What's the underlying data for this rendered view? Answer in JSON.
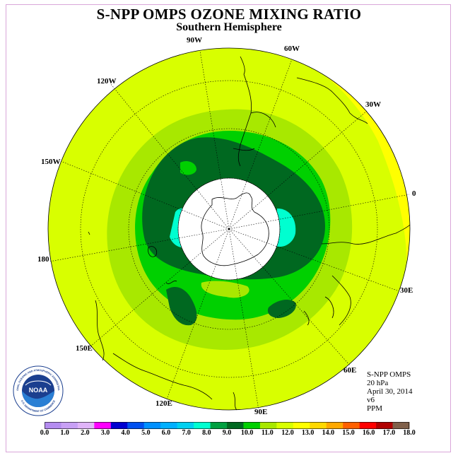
{
  "title": "S-NPP OMPS OZONE MIXING RATIO",
  "subtitle": "Southern Hemisphere",
  "longitude_labels": [
    "90W",
    "60W",
    "30W",
    "0",
    "30E",
    "60E",
    "90E",
    "120E",
    "150E",
    "180",
    "150W",
    "120W"
  ],
  "info": {
    "instrument": "S-NPP OMPS",
    "level": "20 hPa",
    "date": "April 30, 2014",
    "version": "v6",
    "units": "PPM"
  },
  "logo": {
    "text": "NOAA",
    "ring_text": "NATIONAL OCEANIC AND ATMOSPHERIC ADMINISTRATION",
    "ring_text_bottom": "U.S. DEPARTMENT OF COMMERCE"
  },
  "colorbar": {
    "ticks": [
      "0.0",
      "1.0",
      "2.0",
      "3.0",
      "4.0",
      "5.0",
      "6.0",
      "7.0",
      "8.0",
      "9.0",
      "10.0",
      "11.0",
      "12.0",
      "13.0",
      "14.0",
      "15.0",
      "16.0",
      "17.0",
      "18.0"
    ],
    "colors": [
      "#b48cf0",
      "#c8a0f5",
      "#e0b4f8",
      "#ff00ff",
      "#0000d0",
      "#0050f0",
      "#0090ff",
      "#00b0ff",
      "#00d0f0",
      "#00ffd0",
      "#00a040",
      "#006820",
      "#00d000",
      "#a8e800",
      "#d8ff00",
      "#ffff00",
      "#ffd800",
      "#ffa800",
      "#ff6000",
      "#ff0000",
      "#b00000",
      "#80604a"
    ]
  },
  "map_legend_colors": {
    "bg": "#d8ff00",
    "mid_green": "#a8e800",
    "green": "#00d000",
    "dark_green": "#006820",
    "cyan": "#00ffd0",
    "yellow": "#ffff00"
  }
}
